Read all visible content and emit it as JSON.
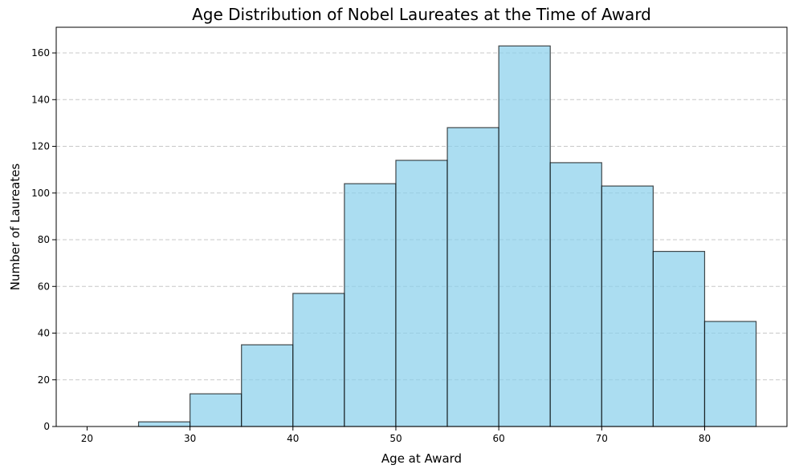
{
  "chart_data": {
    "type": "bar",
    "title": "Age Distribution of Nobel Laureates at the Time of Award",
    "xlabel": "Age at Award",
    "ylabel": "Number of Laureates",
    "bin_edges": [
      20,
      25,
      30,
      35,
      40,
      45,
      50,
      55,
      60,
      65,
      70,
      75,
      80,
      85
    ],
    "values": [
      0,
      2,
      14,
      35,
      57,
      104,
      114,
      128,
      163,
      113,
      103,
      75,
      45
    ],
    "xlim": [
      17,
      88
    ],
    "ylim": [
      0,
      171
    ],
    "x_ticks": [
      20,
      30,
      40,
      50,
      60,
      70,
      80
    ],
    "y_ticks": [
      0,
      20,
      40,
      60,
      80,
      100,
      120,
      140,
      160
    ],
    "grid": {
      "x": false,
      "y": true,
      "style": "dashed"
    },
    "colors": {
      "bar_fill": "#87ceeb",
      "bar_edge": "#000000",
      "grid": "#c8c8c8"
    }
  }
}
